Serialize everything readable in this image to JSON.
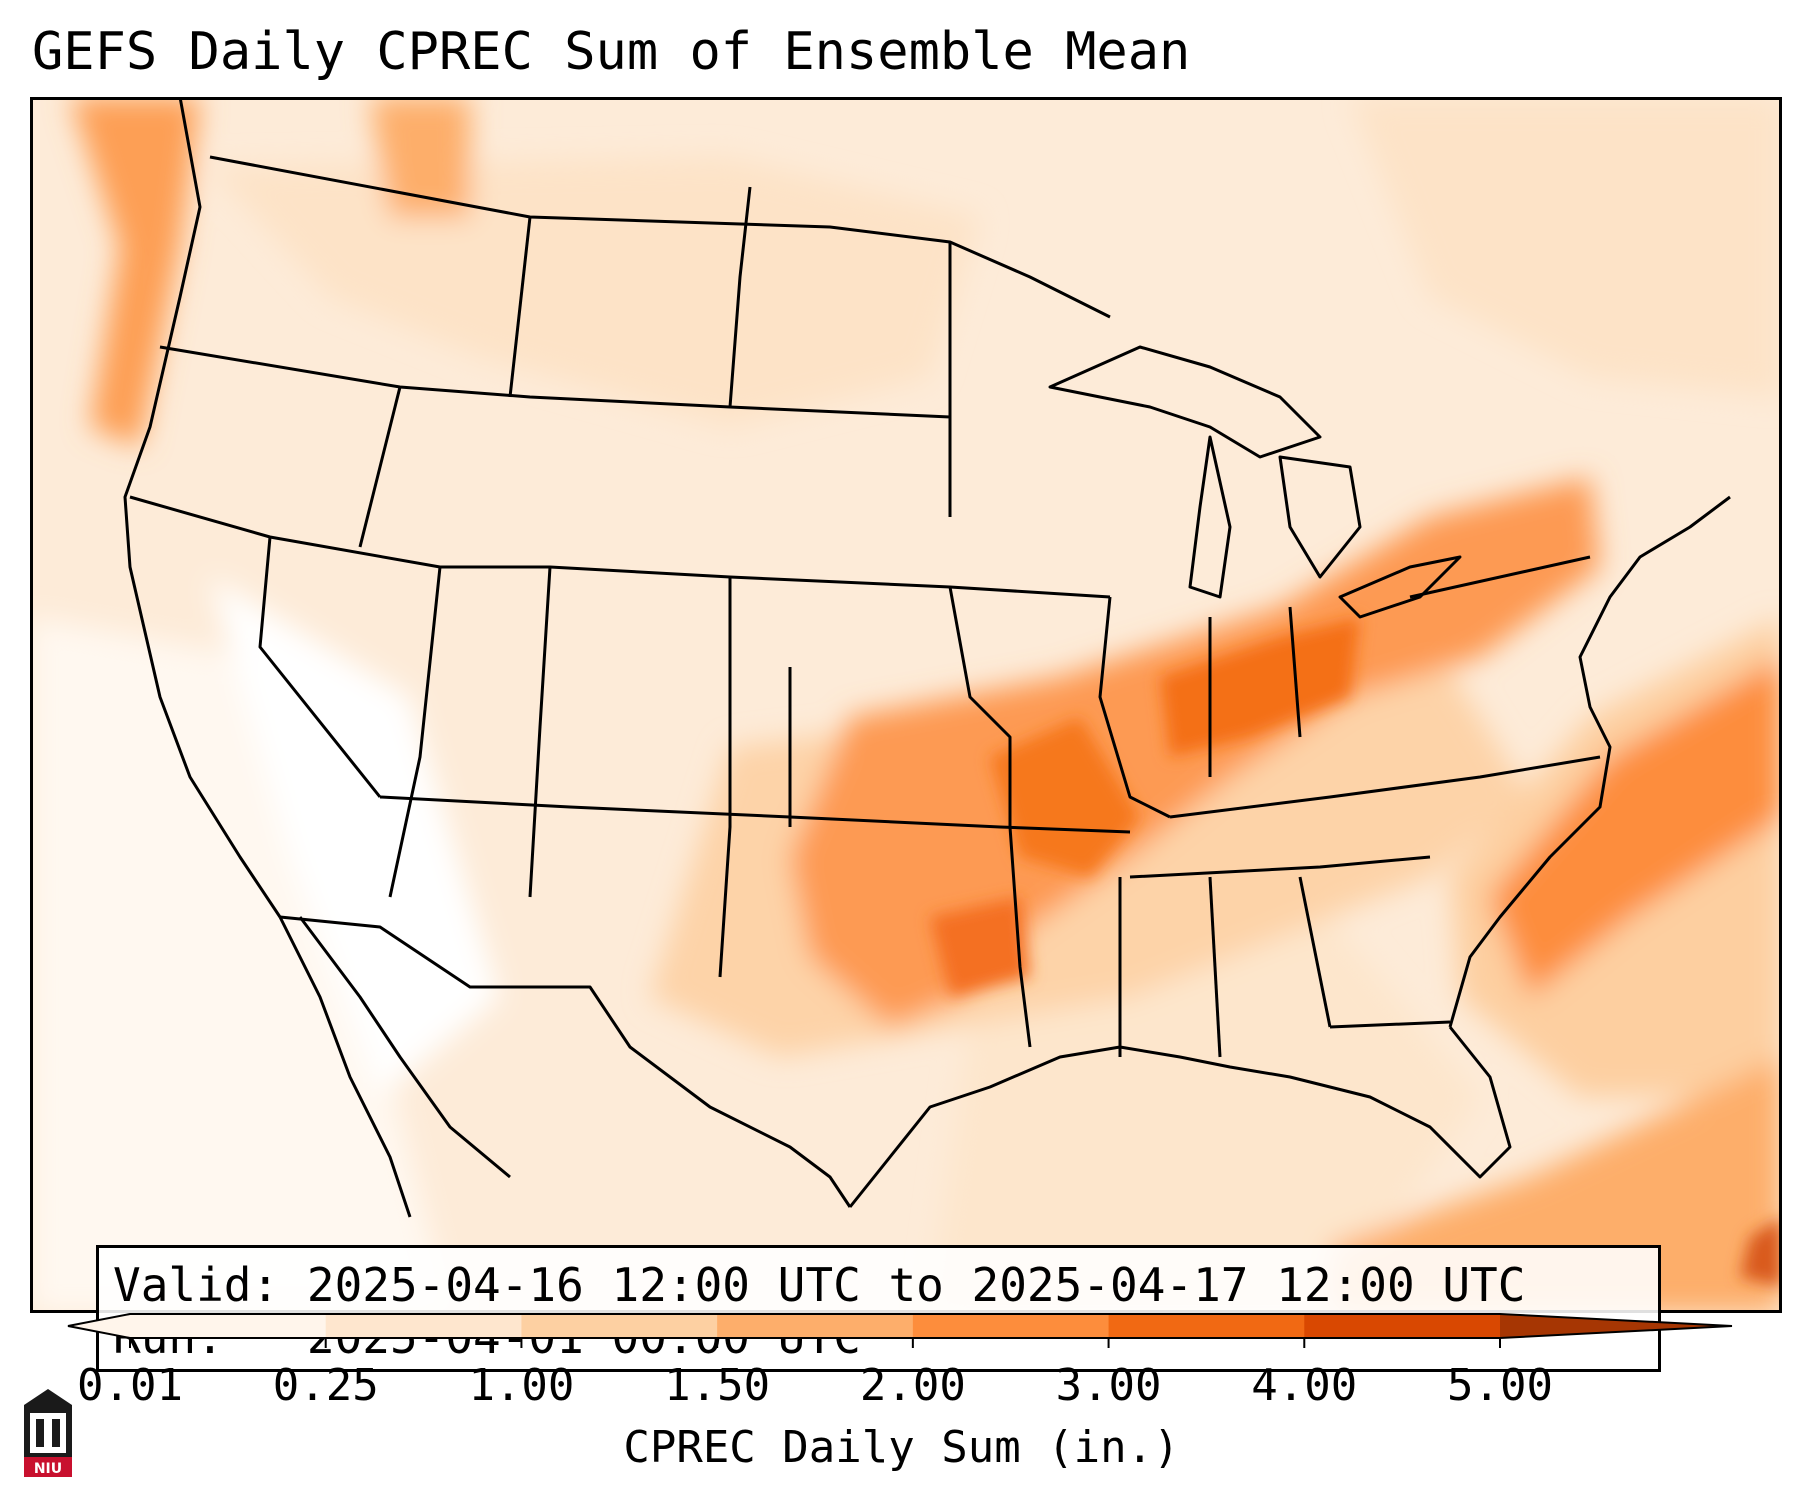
{
  "title": "GEFS Daily CPREC Sum of Ensemble Mean",
  "info": {
    "valid_label": "Valid:",
    "valid_value": "2025-04-16 12:00 UTC to 2025-04-17 12:00 UTC",
    "run_label": "Run:",
    "run_value": "2025-04-01 00:00 UTC"
  },
  "colorbar": {
    "label": "CPREC Daily Sum (in.)",
    "ticks": [
      "0.01",
      "0.25",
      "1.00",
      "1.50",
      "2.00",
      "3.00",
      "4.00",
      "5.00"
    ],
    "colors": [
      "#fff5eb",
      "#fee6ce",
      "#fdd0a2",
      "#fdae6b",
      "#fd8d3c",
      "#f16913",
      "#d94801",
      "#a63603"
    ]
  },
  "logo_text": "NIU",
  "colors": {
    "light": "#fff5eb",
    "pale": "#fee6ce",
    "peach": "#fdd0a2",
    "tan": "#fdae6b",
    "orange": "#fd8d3c",
    "deep": "#f16913",
    "dark": "#d94801",
    "frame": "#000000"
  }
}
